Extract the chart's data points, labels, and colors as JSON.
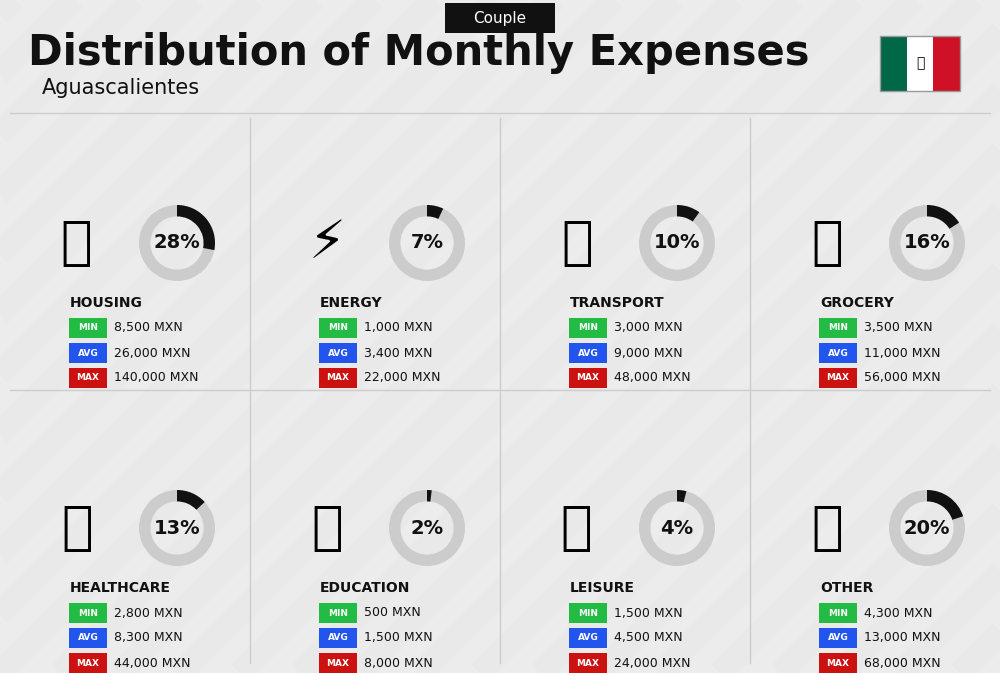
{
  "title": "Distribution of Monthly Expenses",
  "subtitle": "Aguascalientes",
  "badge": "Couple",
  "bg_color": "#ececec",
  "categories": [
    {
      "name": "HOUSING",
      "pct": 28,
      "min_val": "8,500 MXN",
      "avg_val": "26,000 MXN",
      "max_val": "140,000 MXN",
      "icon": "🏙",
      "row": 0,
      "col": 0
    },
    {
      "name": "ENERGY",
      "pct": 7,
      "min_val": "1,000 MXN",
      "avg_val": "3,400 MXN",
      "max_val": "22,000 MXN",
      "icon": "⚡",
      "row": 0,
      "col": 1
    },
    {
      "name": "TRANSPORT",
      "pct": 10,
      "min_val": "3,000 MXN",
      "avg_val": "9,000 MXN",
      "max_val": "48,000 MXN",
      "icon": "🚌",
      "row": 0,
      "col": 2
    },
    {
      "name": "GROCERY",
      "pct": 16,
      "min_val": "3,500 MXN",
      "avg_val": "11,000 MXN",
      "max_val": "56,000 MXN",
      "icon": "🛒",
      "row": 0,
      "col": 3
    },
    {
      "name": "HEALTHCARE",
      "pct": 13,
      "min_val": "2,800 MXN",
      "avg_val": "8,300 MXN",
      "max_val": "44,000 MXN",
      "icon": "❤️",
      "row": 1,
      "col": 0
    },
    {
      "name": "EDUCATION",
      "pct": 2,
      "min_val": "500 MXN",
      "avg_val": "1,500 MXN",
      "max_val": "8,000 MXN",
      "icon": "🎓",
      "row": 1,
      "col": 1
    },
    {
      "name": "LEISURE",
      "pct": 4,
      "min_val": "1,500 MXN",
      "avg_val": "4,500 MXN",
      "max_val": "24,000 MXN",
      "icon": "🛍",
      "row": 1,
      "col": 2
    },
    {
      "name": "OTHER",
      "pct": 20,
      "min_val": "4,300 MXN",
      "avg_val": "13,000 MXN",
      "max_val": "68,000 MXN",
      "icon": "💛",
      "row": 1,
      "col": 3
    }
  ],
  "min_color": "#22bb44",
  "avg_color": "#2255ee",
  "max_color": "#cc1111",
  "label_color": "#ffffff",
  "text_color": "#111111",
  "donut_filled": "#111111",
  "donut_empty": "#cccccc",
  "flag_green": "#006847",
  "flag_white": "#ffffff",
  "flag_red": "#ce1126"
}
